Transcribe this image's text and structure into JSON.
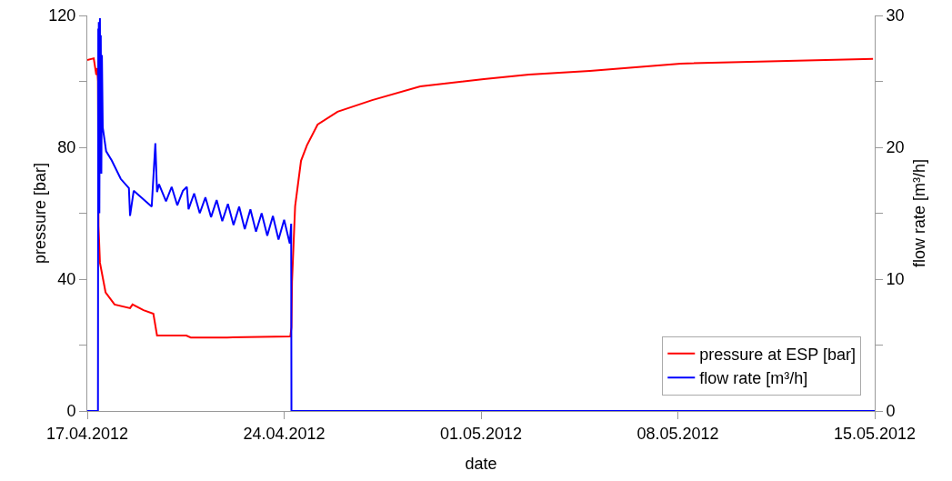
{
  "chart_data": {
    "type": "line",
    "xlabel": "date",
    "ylabel": "pressure [bar]",
    "y2label": "flow rate [m³/h]",
    "xlim": [
      "2012-04-17",
      "2012-05-15"
    ],
    "xticks": [
      {
        "value": "2012-04-17",
        "label": "17.04.2012"
      },
      {
        "value": "2012-04-24",
        "label": "24.04.2012"
      },
      {
        "value": "2012-05-01",
        "label": "01.05.2012"
      },
      {
        "value": "2012-05-08",
        "label": "08.05.2012"
      },
      {
        "value": "2012-05-15",
        "label": "15.05.2012"
      }
    ],
    "ylim": [
      0,
      120
    ],
    "yticks": [
      0,
      {
        "value": 20,
        "label": null
      },
      40,
      {
        "value": 60,
        "label": null
      },
      80,
      {
        "value": 100,
        "label": null
      },
      120
    ],
    "y2lim": [
      0,
      30
    ],
    "y2ticks": [
      0,
      {
        "value": 5,
        "label": null
      },
      10,
      {
        "value": 15,
        "label": null
      },
      20,
      {
        "value": 25,
        "label": null
      },
      30
    ],
    "grid": false,
    "legend": "bottom right",
    "series": [
      {
        "name": "pressure at ESP [bar]",
        "color": "#ff0000",
        "x": [
          "2012-04-17T00:00",
          "2012-04-17T05:30",
          "2012-04-17T07:40",
          "2012-04-17T08:24",
          "2012-04-17T09:07",
          "2012-04-17T09:36",
          "2012-04-17T10:48",
          "2012-04-17T15:36",
          "2012-04-17T23:17",
          "2012-04-18T12:29",
          "2012-04-18T14:38",
          "2012-04-19T00:00",
          "2012-04-19T08:24",
          "2012-04-19T11:31",
          "2012-04-20T12:29",
          "2012-04-20T16:19",
          "2012-04-21T23:17",
          "2012-04-24T05:17",
          "2012-04-24T06:14",
          "2012-04-24T06:43",
          "2012-04-24T09:22",
          "2012-04-24T14:24",
          "2012-04-24T19:26",
          "2012-04-25T04:34",
          "2012-04-25T21:36",
          "2012-04-27T03:07",
          "2012-04-28T20:10",
          "2012-05-01T02:24",
          "2012-05-02T17:02",
          "2012-05-04T20:53",
          "2012-05-08T02:24",
          "2012-05-14T22:34"
        ],
        "values": [
          106.5,
          107,
          102,
          104,
          100,
          56,
          45,
          36,
          32.3,
          31.2,
          32.3,
          30.6,
          29.5,
          22.9,
          22.9,
          22.3,
          22.3,
          22.6,
          25.4,
          39.2,
          62.1,
          75.9,
          80.6,
          86.9,
          90.8,
          94.3,
          98.5,
          100.7,
          102.1,
          103.2,
          105.4,
          106.8
        ]
      },
      {
        "name": "flow rate [m³/h]",
        "color": "#0000ff",
        "axis": "y2",
        "x": [
          "2012-04-17T00:00",
          "2012-04-17T09:07",
          "2012-04-17T09:22",
          "2012-04-17T09:36",
          "2012-04-17T09:50",
          "2012-04-17T10:19",
          "2012-04-17T10:48",
          "2012-04-17T11:02",
          "2012-04-17T11:31",
          "2012-04-17T12:00",
          "2012-04-17T12:29",
          "2012-04-17T13:12",
          "2012-04-17T16:05",
          "2012-04-17T20:53",
          "2012-04-18T04:34",
          "2012-04-18T11:31",
          "2012-04-18T12:29",
          "2012-04-18T15:36",
          "2012-04-19T06:58",
          "2012-04-19T10:05",
          "2012-04-19T11:31",
          "2012-04-19T13:12",
          "2012-04-19T19:12",
          "2012-04-20T00:00",
          "2012-04-20T04:48",
          "2012-04-20T09:36",
          "2012-04-20T12:58",
          "2012-04-20T14:24",
          "2012-04-20T19:12",
          "2012-04-21T00:00",
          "2012-04-21T04:48",
          "2012-04-21T09:36",
          "2012-04-21T14:24",
          "2012-04-21T19:12",
          "2012-04-22T00:00",
          "2012-04-22T04:48",
          "2012-04-22T09:36",
          "2012-04-22T14:24",
          "2012-04-22T19:12",
          "2012-04-23T00:00",
          "2012-04-23T04:48",
          "2012-04-23T09:36",
          "2012-04-23T14:24",
          "2012-04-23T19:12",
          "2012-04-24T00:00",
          "2012-04-24T04:48",
          "2012-04-24T06:00",
          "2012-04-24T06:14",
          "2012-05-15T00:00"
        ],
        "values": [
          0,
          0,
          29,
          20,
          29.5,
          15,
          29.8,
          22,
          28.5,
          18,
          27,
          21.5,
          19.7,
          19,
          17.6,
          16.9,
          14.8,
          16.7,
          15.5,
          20.3,
          16.6,
          17.2,
          15.9,
          17,
          15.6,
          16.7,
          17,
          15.3,
          16.5,
          15,
          16.2,
          14.7,
          16,
          14.4,
          15.7,
          14.1,
          15.5,
          13.8,
          15.3,
          13.6,
          15,
          13.3,
          14.8,
          13,
          14.5,
          12.7,
          14.2,
          0,
          0
        ]
      }
    ]
  }
}
